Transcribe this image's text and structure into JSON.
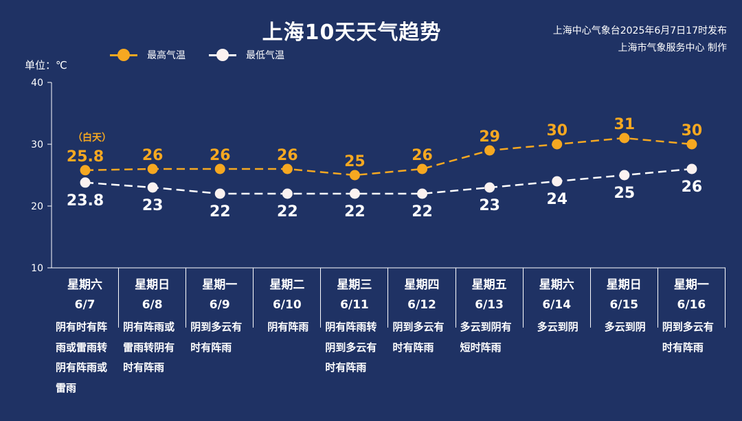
{
  "header": {
    "title": "上海10天天气趋势",
    "source_line1": "上海中心气象台2025年6月7日17时发布",
    "source_line2": "上海市气象服务中心 制作"
  },
  "legend": {
    "high_label": "最高气温",
    "low_label": "最低气温"
  },
  "unit_label": "单位：℃",
  "annotation": "（白天）",
  "colors": {
    "background": "#1f3264",
    "high": "#f6a821",
    "low": "#ffffff"
  },
  "chart_data": {
    "type": "line",
    "categories": [
      "6/7",
      "6/8",
      "6/9",
      "6/10",
      "6/11",
      "6/12",
      "6/13",
      "6/14",
      "6/15",
      "6/16"
    ],
    "series": [
      {
        "name": "最高气温",
        "values": [
          25.8,
          26,
          26,
          26,
          25,
          26,
          29,
          30,
          31,
          30
        ],
        "color": "#f6a821",
        "dashed": true
      },
      {
        "name": "最低气温",
        "values": [
          23.8,
          23,
          22,
          22,
          22,
          22,
          23,
          24,
          25,
          26
        ],
        "color": "#ffffff",
        "dashed": true
      }
    ],
    "title": "上海10天天气趋势",
    "ylabel": "单位：℃",
    "ylim": [
      10,
      40
    ],
    "yticks": [
      10,
      20,
      30,
      40
    ],
    "grid": false,
    "legend_position": "top-left"
  },
  "days": [
    {
      "weekday": "星期六",
      "date": "6/7",
      "weather": "阴有时有阵雨或雷雨转阴有阵雨或雷雨"
    },
    {
      "weekday": "星期日",
      "date": "6/8",
      "weather": "阴有阵雨或雷雨转阴有时有阵雨"
    },
    {
      "weekday": "星期一",
      "date": "6/9",
      "weather": "阴到多云有时有阵雨"
    },
    {
      "weekday": "星期二",
      "date": "6/10",
      "weather": "阴有阵雨"
    },
    {
      "weekday": "星期三",
      "date": "6/11",
      "weather": "阴有阵雨转阴到多云有时有阵雨"
    },
    {
      "weekday": "星期四",
      "date": "6/12",
      "weather": "阴到多云有时有阵雨"
    },
    {
      "weekday": "星期五",
      "date": "6/13",
      "weather": "多云到阴有短时阵雨"
    },
    {
      "weekday": "星期六",
      "date": "6/14",
      "weather": "多云到阴"
    },
    {
      "weekday": "星期日",
      "date": "6/15",
      "weather": "多云到阴"
    },
    {
      "weekday": "星期一",
      "date": "6/16",
      "weather": "阴到多云有时有阵雨"
    }
  ]
}
